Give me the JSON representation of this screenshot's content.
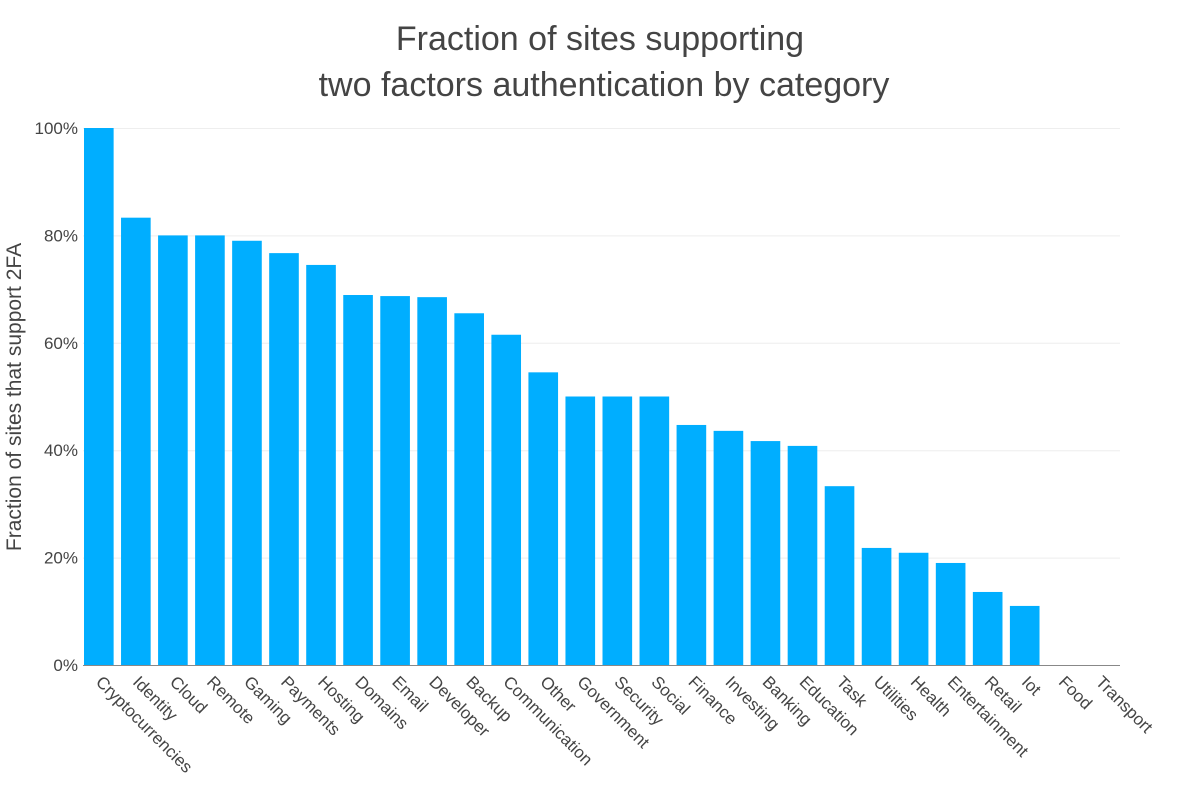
{
  "chart_data": {
    "type": "bar",
    "title": [
      "Fraction of sites supporting",
      "two factors authentication by category"
    ],
    "xlabel": "",
    "ylabel": "Fraction of sites that support 2FA",
    "ylim": [
      0,
      100
    ],
    "yticks": [
      0,
      20,
      40,
      60,
      80,
      100
    ],
    "ytick_labels": [
      "0%",
      "20%",
      "40%",
      "60%",
      "80%",
      "100%"
    ],
    "grid": true,
    "bar_color": "#00AEFF",
    "categories": [
      "Cryptocurrencies",
      "Identity",
      "Cloud",
      "Remote",
      "Gaming",
      "Payments",
      "Hosting",
      "Domains",
      "Email",
      "Developer",
      "Backup",
      "Communication",
      "Other",
      "Government",
      "Security",
      "Social",
      "Finance",
      "Investing",
      "Banking",
      "Education",
      "Task",
      "Utilities",
      "Health",
      "Entertainment",
      "Retail",
      "Iot",
      "Food",
      "Transport"
    ],
    "values": [
      100,
      83.3,
      80,
      80,
      79,
      76.7,
      74.5,
      68.9,
      68.7,
      68.5,
      65.5,
      61.5,
      54.5,
      50,
      50,
      50,
      44.7,
      43.6,
      41.7,
      40.8,
      33.3,
      21.8,
      20.9,
      19,
      13.6,
      11,
      0,
      0
    ]
  }
}
